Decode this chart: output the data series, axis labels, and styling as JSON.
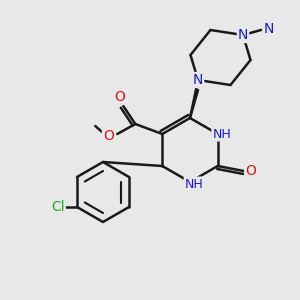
{
  "background_color": "#e8e8e8",
  "bond_color": "#1a1a1a",
  "bond_width": 1.8,
  "atom_colors": {
    "N": "#1a1acc",
    "O": "#cc1a1a",
    "Cl": "#22aa22",
    "H": "#888888",
    "C": "#1a1a1a"
  },
  "font_size": 10,
  "small_font_size": 9,
  "label_bg": "#e8e8e8"
}
